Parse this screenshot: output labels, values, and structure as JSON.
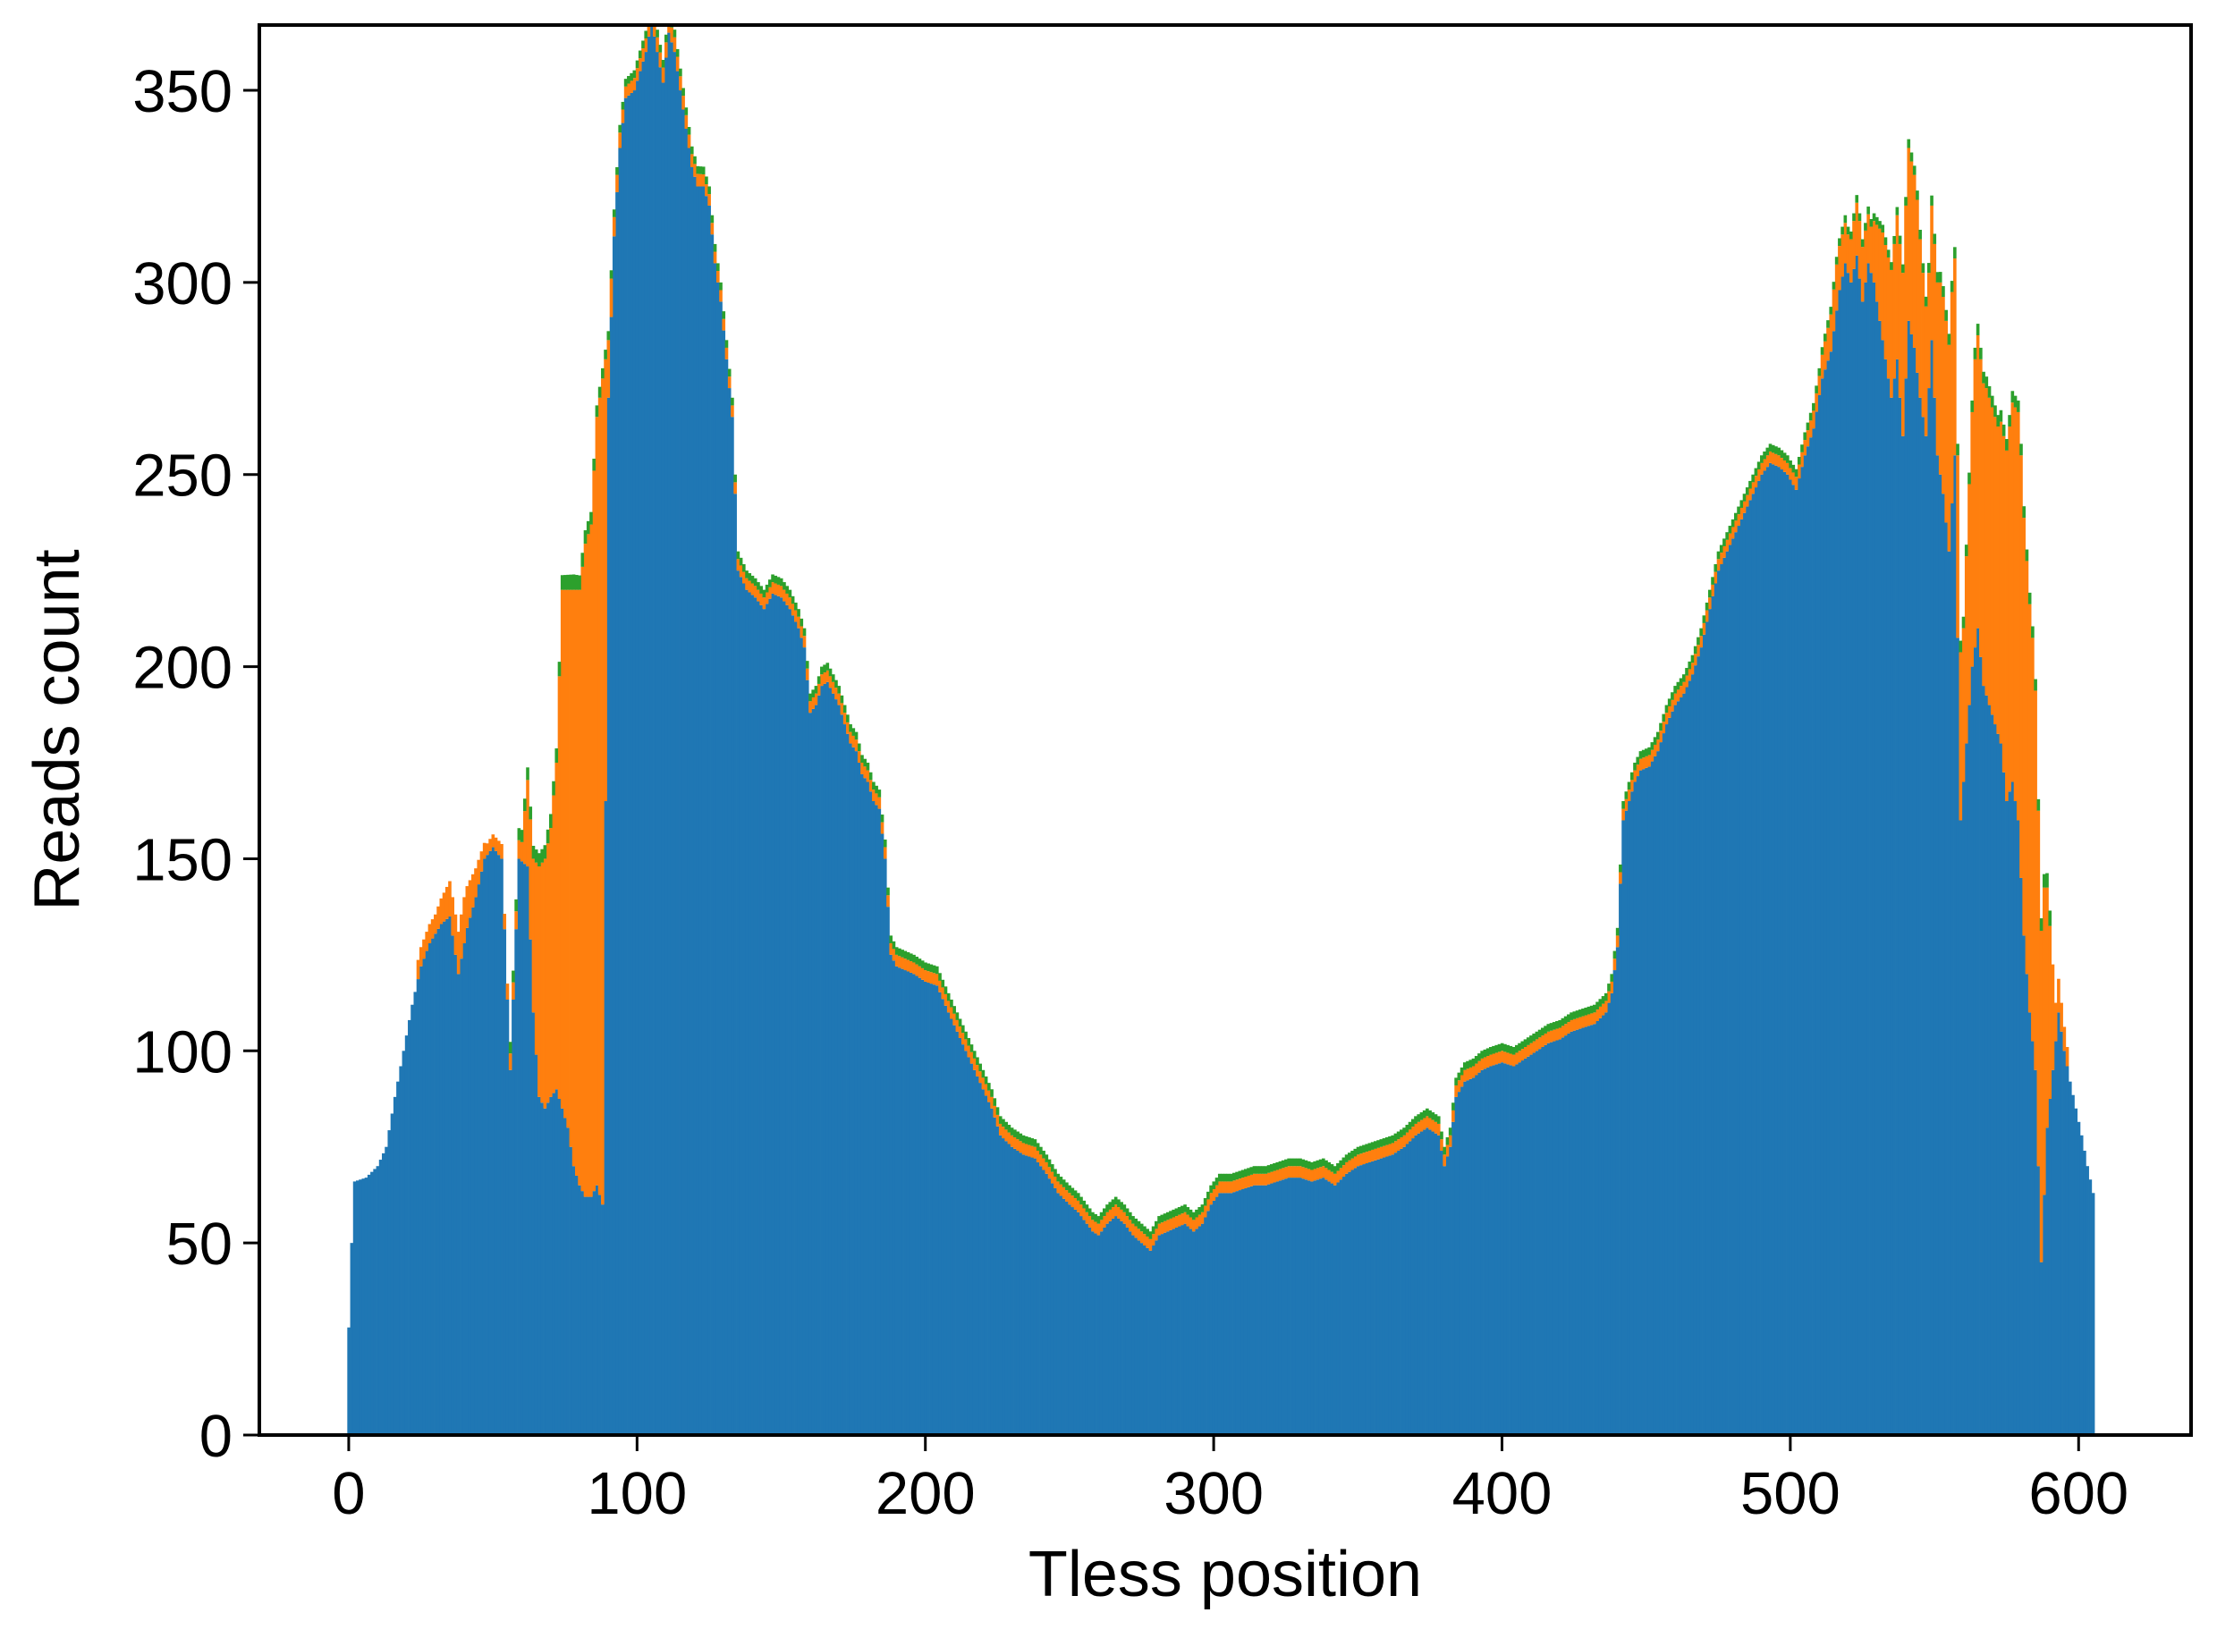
{
  "chart_data": {
    "type": "bar",
    "title": "",
    "xlabel": "Tless position",
    "ylabel": "Reads count",
    "xlim": [
      -31,
      639
    ],
    "ylim": [
      0,
      367
    ],
    "xticks": [
      0,
      100,
      200,
      300,
      400,
      500,
      600
    ],
    "yticks": [
      0,
      50,
      100,
      150,
      200,
      250,
      300,
      350
    ],
    "grid": false,
    "stacked": true,
    "colors": {
      "blue": "#1f77b4",
      "orange": "#ff7f0e",
      "green": "#2ca02c",
      "axis": "#000000"
    },
    "series": [
      {
        "color": "blue",
        "points": [
          [
            0,
            28
          ],
          [
            1,
            50
          ],
          [
            2,
            66
          ],
          [
            6,
            67
          ],
          [
            10,
            70
          ],
          [
            13,
            75
          ],
          [
            16,
            88
          ],
          [
            19,
            100
          ],
          [
            22,
            112
          ],
          [
            25,
            122
          ],
          [
            28,
            128
          ],
          [
            32,
            133
          ],
          [
            35,
            135
          ],
          [
            38,
            120
          ],
          [
            41,
            132
          ],
          [
            44,
            140
          ],
          [
            47,
            150
          ],
          [
            50,
            153
          ],
          [
            53,
            150
          ],
          [
            56,
            95
          ],
          [
            59,
            150
          ],
          [
            62,
            148
          ],
          [
            64,
            110
          ],
          [
            66,
            88
          ],
          [
            68,
            85
          ],
          [
            70,
            88
          ],
          [
            72,
            90
          ],
          [
            74,
            85
          ],
          [
            76,
            80
          ],
          [
            78,
            70
          ],
          [
            80,
            65
          ],
          [
            82,
            62
          ],
          [
            84,
            62
          ],
          [
            86,
            65
          ],
          [
            88,
            60
          ],
          [
            90,
            270
          ],
          [
            92,
            312
          ],
          [
            94,
            335
          ],
          [
            96,
            348
          ],
          [
            99,
            350
          ],
          [
            101,
            355
          ],
          [
            103,
            360
          ],
          [
            105,
            368
          ],
          [
            107,
            360
          ],
          [
            109,
            352
          ],
          [
            111,
            365
          ],
          [
            113,
            360
          ],
          [
            115,
            350
          ],
          [
            117,
            340
          ],
          [
            119,
            330
          ],
          [
            121,
            325
          ],
          [
            123,
            325
          ],
          [
            125,
            320
          ],
          [
            127,
            305
          ],
          [
            129,
            295
          ],
          [
            131,
            280
          ],
          [
            133,
            265
          ],
          [
            135,
            225
          ],
          [
            138,
            220
          ],
          [
            141,
            218
          ],
          [
            144,
            215
          ],
          [
            147,
            219
          ],
          [
            150,
            218
          ],
          [
            153,
            215
          ],
          [
            156,
            210
          ],
          [
            158,
            205
          ],
          [
            160,
            188
          ],
          [
            162,
            190
          ],
          [
            164,
            195
          ],
          [
            166,
            196
          ],
          [
            168,
            193
          ],
          [
            170,
            190
          ],
          [
            172,
            185
          ],
          [
            174,
            180
          ],
          [
            176,
            178
          ],
          [
            178,
            172
          ],
          [
            180,
            170
          ],
          [
            182,
            165
          ],
          [
            184,
            163
          ],
          [
            186,
            150
          ],
          [
            188,
            125
          ],
          [
            190,
            122
          ],
          [
            193,
            121
          ],
          [
            196,
            120
          ],
          [
            200,
            118
          ],
          [
            204,
            117
          ],
          [
            208,
            110
          ],
          [
            211,
            105
          ],
          [
            214,
            100
          ],
          [
            217,
            95
          ],
          [
            220,
            90
          ],
          [
            223,
            85
          ],
          [
            226,
            78
          ],
          [
            230,
            75
          ],
          [
            234,
            73
          ],
          [
            238,
            72
          ],
          [
            242,
            68
          ],
          [
            246,
            63
          ],
          [
            250,
            60
          ],
          [
            253,
            58
          ],
          [
            256,
            55
          ],
          [
            258,
            53
          ],
          [
            260,
            52
          ],
          [
            263,
            55
          ],
          [
            266,
            57
          ],
          [
            269,
            55
          ],
          [
            272,
            52
          ],
          [
            275,
            50
          ],
          [
            278,
            48
          ],
          [
            281,
            52
          ],
          [
            284,
            53
          ],
          [
            287,
            54
          ],
          [
            290,
            55
          ],
          [
            293,
            53
          ],
          [
            296,
            55
          ],
          [
            299,
            60
          ],
          [
            302,
            63
          ],
          [
            306,
            63
          ],
          [
            310,
            64
          ],
          [
            314,
            65
          ],
          [
            318,
            65
          ],
          [
            322,
            66
          ],
          [
            326,
            67
          ],
          [
            330,
            67
          ],
          [
            334,
            66
          ],
          [
            338,
            67
          ],
          [
            342,
            65
          ],
          [
            346,
            68
          ],
          [
            350,
            70
          ],
          [
            354,
            71
          ],
          [
            358,
            72
          ],
          [
            362,
            73
          ],
          [
            366,
            75
          ],
          [
            370,
            78
          ],
          [
            374,
            80
          ],
          [
            378,
            78
          ],
          [
            380,
            70
          ],
          [
            382,
            75
          ],
          [
            384,
            88
          ],
          [
            387,
            92
          ],
          [
            390,
            93
          ],
          [
            393,
            95
          ],
          [
            396,
            96
          ],
          [
            400,
            97
          ],
          [
            404,
            96
          ],
          [
            408,
            98
          ],
          [
            412,
            100
          ],
          [
            416,
            102
          ],
          [
            420,
            103
          ],
          [
            424,
            105
          ],
          [
            428,
            106
          ],
          [
            432,
            107
          ],
          [
            436,
            110
          ],
          [
            438,
            115
          ],
          [
            440,
            127
          ],
          [
            442,
            160
          ],
          [
            444,
            165
          ],
          [
            446,
            170
          ],
          [
            448,
            173
          ],
          [
            451,
            174
          ],
          [
            454,
            178
          ],
          [
            457,
            185
          ],
          [
            460,
            190
          ],
          [
            463,
            193
          ],
          [
            466,
            198
          ],
          [
            469,
            205
          ],
          [
            472,
            215
          ],
          [
            475,
            225
          ],
          [
            478,
            230
          ],
          [
            481,
            235
          ],
          [
            484,
            240
          ],
          [
            487,
            245
          ],
          [
            490,
            250
          ],
          [
            493,
            253
          ],
          [
            496,
            252
          ],
          [
            499,
            250
          ],
          [
            502,
            246
          ],
          [
            505,
            255
          ],
          [
            508,
            262
          ],
          [
            511,
            275
          ],
          [
            514,
            282
          ],
          [
            517,
            298
          ],
          [
            519,
            305
          ],
          [
            521,
            300
          ],
          [
            523,
            307
          ],
          [
            525,
            295
          ],
          [
            527,
            305
          ],
          [
            529,
            300
          ],
          [
            531,
            290
          ],
          [
            533,
            280
          ],
          [
            535,
            270
          ],
          [
            537,
            280
          ],
          [
            539,
            260
          ],
          [
            541,
            290
          ],
          [
            543,
            283
          ],
          [
            545,
            270
          ],
          [
            547,
            260
          ],
          [
            549,
            285
          ],
          [
            551,
            255
          ],
          [
            553,
            245
          ],
          [
            555,
            230
          ],
          [
            557,
            255
          ],
          [
            559,
            160
          ],
          [
            561,
            180
          ],
          [
            563,
            200
          ],
          [
            565,
            210
          ],
          [
            567,
            195
          ],
          [
            569,
            190
          ],
          [
            571,
            185
          ],
          [
            573,
            180
          ],
          [
            575,
            165
          ],
          [
            577,
            170
          ],
          [
            579,
            160
          ],
          [
            581,
            130
          ],
          [
            583,
            110
          ],
          [
            585,
            95
          ],
          [
            587,
            45
          ],
          [
            589,
            80
          ],
          [
            591,
            95
          ],
          [
            593,
            110
          ],
          [
            595,
            100
          ],
          [
            597,
            92
          ],
          [
            599,
            85
          ],
          [
            601,
            78
          ],
          [
            603,
            70
          ],
          [
            605,
            63
          ]
        ]
      },
      {
        "color": "orange",
        "points": [
          [
            24,
            5
          ],
          [
            30,
            5
          ],
          [
            36,
            10
          ],
          [
            40,
            12
          ],
          [
            48,
            3
          ],
          [
            60,
            5
          ],
          [
            64,
            40
          ],
          [
            66,
            60
          ],
          [
            68,
            65
          ],
          [
            70,
            70
          ],
          [
            72,
            85
          ],
          [
            74,
            135
          ],
          [
            76,
            140
          ],
          [
            78,
            150
          ],
          [
            80,
            155
          ],
          [
            82,
            170
          ],
          [
            84,
            175
          ],
          [
            86,
            200
          ],
          [
            88,
            215
          ],
          [
            90,
            15
          ],
          [
            92,
            5
          ],
          [
            96,
            3
          ],
          [
            110,
            4
          ],
          [
            125,
            3
          ],
          [
            428,
            3
          ],
          [
            436,
            3
          ],
          [
            500,
            3
          ],
          [
            510,
            5
          ],
          [
            516,
            12
          ],
          [
            520,
            10
          ],
          [
            524,
            15
          ],
          [
            528,
            12
          ],
          [
            532,
            28
          ],
          [
            536,
            35
          ],
          [
            540,
            45
          ],
          [
            544,
            45
          ],
          [
            548,
            30
          ],
          [
            552,
            50
          ],
          [
            556,
            55
          ],
          [
            560,
            40
          ],
          [
            564,
            75
          ],
          [
            568,
            80
          ],
          [
            572,
            80
          ],
          [
            576,
            95
          ],
          [
            580,
            110
          ],
          [
            584,
            105
          ],
          [
            588,
            80
          ],
          [
            592,
            10
          ],
          [
            596,
            5
          ]
        ]
      },
      {
        "color": "green",
        "points": [
          [
            56,
            3
          ],
          [
            78,
            4
          ],
          [
            86,
            3
          ],
          [
            92,
            2
          ],
          [
            130,
            2
          ],
          [
            490,
            2
          ],
          [
            534,
            2
          ],
          [
            558,
            3
          ],
          [
            570,
            3
          ],
          [
            586,
            3
          ],
          [
            590,
            4
          ]
        ]
      }
    ]
  }
}
